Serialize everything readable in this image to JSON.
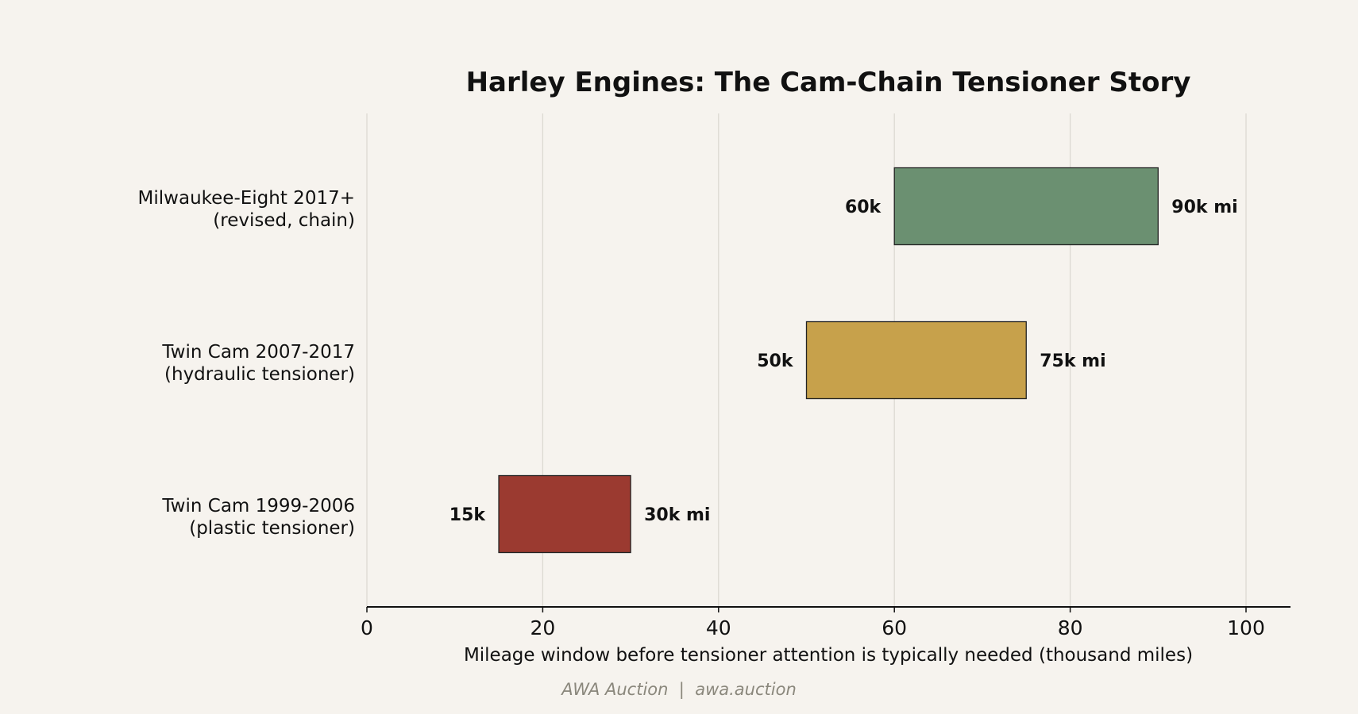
{
  "chart_data": {
    "type": "bar",
    "orientation": "horizontal",
    "title": "Harley Engines: The Cam-Chain Tensioner Story",
    "xlabel": "Mileage window before tensioner attention is typically needed (thousand miles)",
    "ylabel": "",
    "xlim": [
      0,
      105
    ],
    "xticks": [
      0,
      20,
      40,
      60,
      80,
      100
    ],
    "grid": true,
    "categories": [
      {
        "line1": "Milwaukee-Eight 2017+",
        "line2": "(revised, chain)"
      },
      {
        "line1": "Twin Cam 2007-2017",
        "line2": "(hydraulic tensioner)"
      },
      {
        "line1": "Twin Cam 1999-2006",
        "line2": "(plastic tensioner)"
      }
    ],
    "ranges": [
      {
        "start": 60,
        "end": 90,
        "start_label": "60k",
        "end_label": "90k mi",
        "color": "#6b9071"
      },
      {
        "start": 50,
        "end": 75,
        "start_label": "50k",
        "end_label": "75k mi",
        "color": "#c7a14b"
      },
      {
        "start": 15,
        "end": 30,
        "start_label": "15k",
        "end_label": "30k mi",
        "color": "#9b3a30"
      }
    ]
  },
  "footer": "AWA Auction  |  awa.auction"
}
